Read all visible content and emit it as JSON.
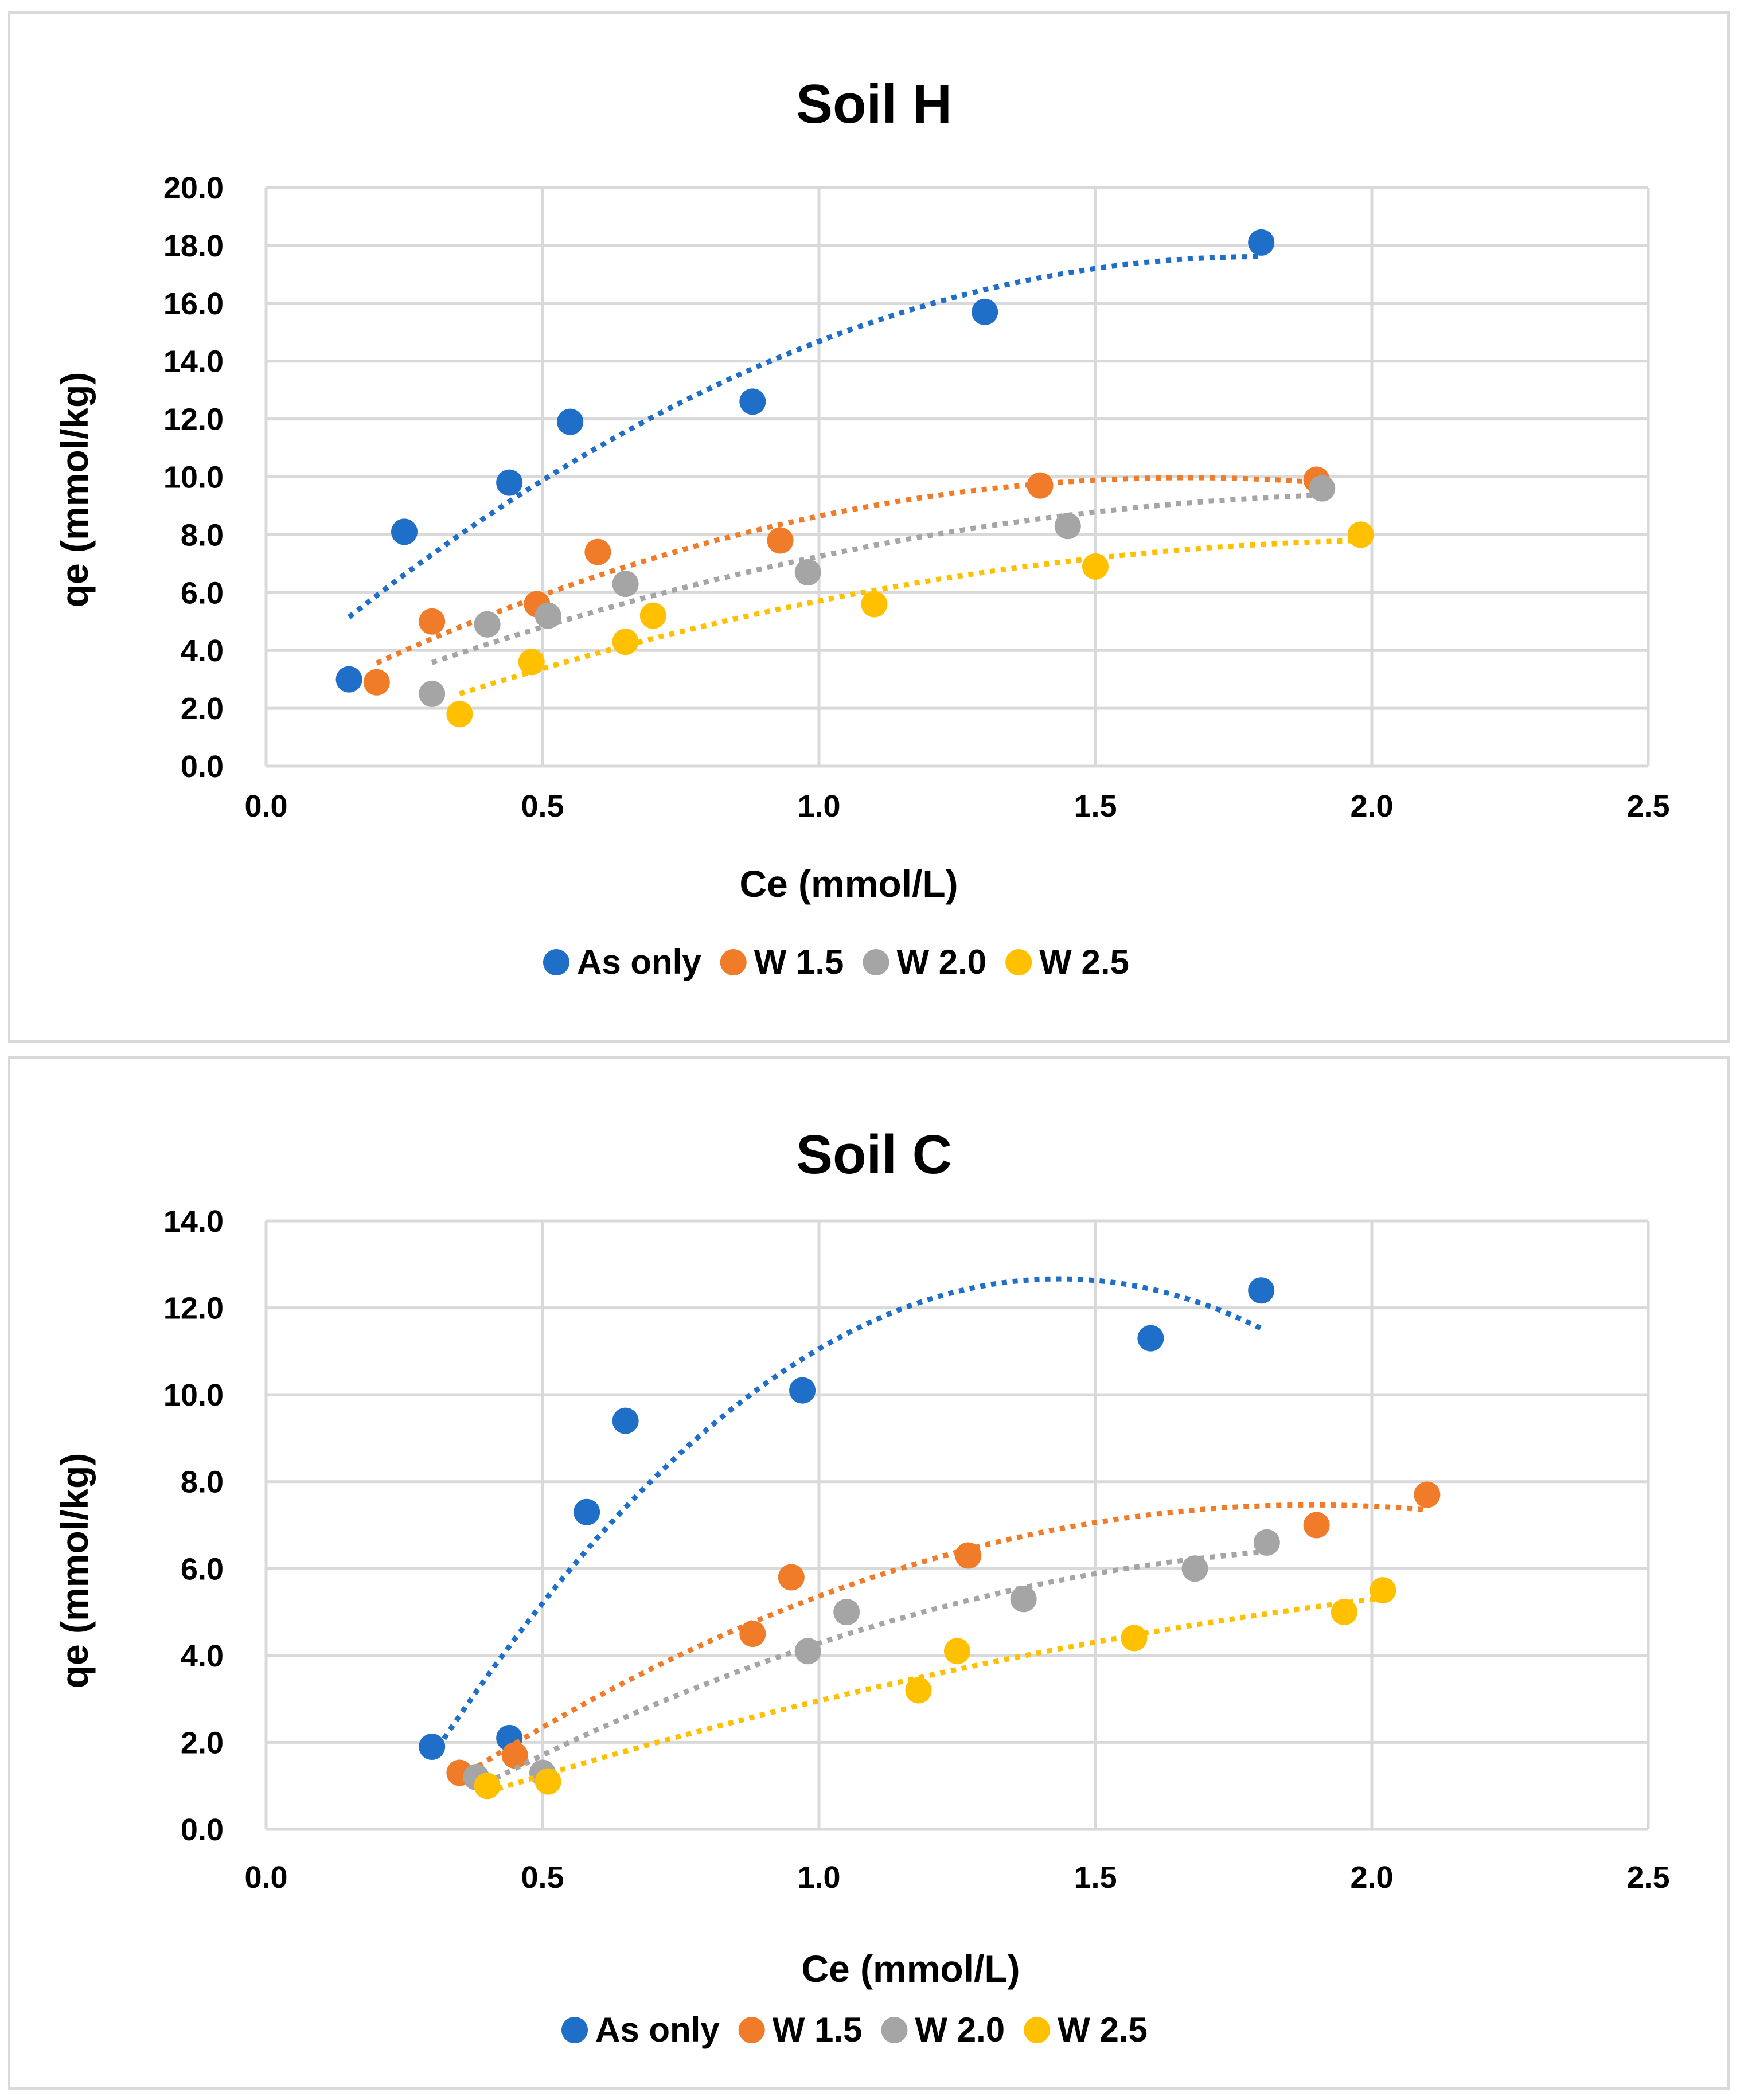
{
  "chart_data": [
    {
      "type": "scatter",
      "title": "Soil H",
      "xlabel": "Ce (mmol/L)",
      "ylabel": "qe (mmol/kg)",
      "xlim": [
        0,
        2.5
      ],
      "ylim": [
        0,
        20
      ],
      "x_ticks": [
        "0.0",
        "0.5",
        "1.0",
        "1.5",
        "2.0",
        "2.5"
      ],
      "y_ticks": [
        "0.0",
        "2.0",
        "4.0",
        "6.0",
        "8.0",
        "10.0",
        "12.0",
        "14.0",
        "16.0",
        "18.0",
        "20.0"
      ],
      "grid": true,
      "legend_position": "bottom",
      "trendline": "polynomial-2, dotted",
      "series": [
        {
          "name": "As only",
          "color": "#1f6fc8",
          "x": [
            0.15,
            0.25,
            0.44,
            0.55,
            0.88,
            1.3,
            1.8
          ],
          "y": [
            3.0,
            8.1,
            9.8,
            11.9,
            12.6,
            15.7,
            18.1
          ],
          "trend_range": [
            0.15,
            1.8
          ]
        },
        {
          "name": "W 1.5",
          "color": "#f07c2a",
          "x": [
            0.2,
            0.3,
            0.49,
            0.6,
            0.93,
            1.4,
            1.9
          ],
          "y": [
            2.9,
            5.0,
            5.6,
            7.4,
            7.8,
            9.7,
            9.9
          ],
          "trend_range": [
            0.2,
            1.9
          ]
        },
        {
          "name": "W 2.0",
          "color": "#a5a5a5",
          "x": [
            0.3,
            0.4,
            0.51,
            0.65,
            0.98,
            1.45,
            1.91
          ],
          "y": [
            2.5,
            4.9,
            5.2,
            6.3,
            6.7,
            8.3,
            9.6
          ],
          "trend_range": [
            0.3,
            1.91
          ]
        },
        {
          "name": "W 2.5",
          "color": "#ffc000",
          "x": [
            0.35,
            0.48,
            0.65,
            0.7,
            1.1,
            1.5,
            1.98
          ],
          "y": [
            1.8,
            3.6,
            4.3,
            5.2,
            5.6,
            6.9,
            8.0
          ],
          "trend_range": [
            0.35,
            1.98
          ]
        }
      ]
    },
    {
      "type": "scatter",
      "title": "Soil C",
      "xlabel": "Ce (mmol/L)",
      "ylabel": "qe (mmol/kg)",
      "xlim": [
        0,
        2.5
      ],
      "ylim": [
        0,
        14
      ],
      "x_ticks": [
        "0.0",
        "0.5",
        "1.0",
        "1.5",
        "2.0",
        "2.5"
      ],
      "y_ticks": [
        "0.0",
        "2.0",
        "4.0",
        "6.0",
        "8.0",
        "10.0",
        "12.0",
        "14.0"
      ],
      "grid": true,
      "legend_position": "bottom",
      "trendline": "polynomial-2, dotted",
      "series": [
        {
          "name": "As only",
          "color": "#1f6fc8",
          "x": [
            0.3,
            0.44,
            0.58,
            0.65,
            0.97,
            1.6,
            1.8
          ],
          "y": [
            1.9,
            2.1,
            7.3,
            9.4,
            10.1,
            11.3,
            12.4
          ],
          "trend_range": [
            0.3,
            1.8
          ]
        },
        {
          "name": "W 1.5",
          "color": "#f07c2a",
          "x": [
            0.35,
            0.45,
            0.88,
            0.95,
            1.27,
            1.9,
            2.1
          ],
          "y": [
            1.3,
            1.7,
            4.5,
            5.8,
            6.3,
            7.0,
            7.7
          ],
          "trend_range": [
            0.35,
            2.1
          ]
        },
        {
          "name": "W 2.0",
          "color": "#a5a5a5",
          "x": [
            0.38,
            0.5,
            0.98,
            1.05,
            1.37,
            1.68,
            1.81
          ],
          "y": [
            1.2,
            1.3,
            4.1,
            5.0,
            5.3,
            6.0,
            6.6
          ],
          "trend_range": [
            0.38,
            1.81
          ]
        },
        {
          "name": "W 2.5",
          "color": "#ffc000",
          "x": [
            0.4,
            0.51,
            1.18,
            1.25,
            1.57,
            1.95,
            2.02
          ],
          "y": [
            1.0,
            1.1,
            3.2,
            4.1,
            4.4,
            5.0,
            5.5
          ],
          "trend_range": [
            0.4,
            2.02
          ]
        }
      ]
    }
  ]
}
